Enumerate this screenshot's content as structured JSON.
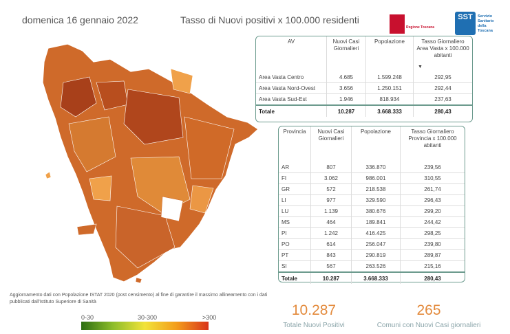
{
  "header": {
    "date": "domenica 16 gennaio 2022",
    "title": "Tasso di Nuovi positivi x 100.000 residenti",
    "logo_regione_text": "Regione Toscana",
    "logo_sst_badge": "SST",
    "logo_sst_text": "Servizio Sanitario della Toscana"
  },
  "av_table": {
    "headers": [
      "AV",
      "Nuovi Casi Giornalieri",
      "Popolazione",
      "Tasso Giornaliero Area Vasta x 100.000 abitanti"
    ],
    "sort_indicator": "▼",
    "rows": [
      [
        "Area Vasta Centro",
        "4.685",
        "1.599.248",
        "292,95"
      ],
      [
        "Area Vasta Nord-Ovest",
        "3.656",
        "1.250.151",
        "292,44"
      ],
      [
        "Area Vasta Sud-Est",
        "1.946",
        "818.934",
        "237,63"
      ]
    ],
    "total": [
      "Totale",
      "10.287",
      "3.668.333",
      "280,43"
    ]
  },
  "prov_table": {
    "headers": [
      "Provincia",
      "Nuovi Casi Giornalieri",
      "Popolazione",
      "Tasso Giornaliero Provincia x 100.000 abitanti"
    ],
    "rows": [
      [
        "AR",
        "807",
        "336.870",
        "239,56"
      ],
      [
        "FI",
        "3.062",
        "986.001",
        "310,55"
      ],
      [
        "GR",
        "572",
        "218.538",
        "261,74"
      ],
      [
        "LI",
        "977",
        "329.590",
        "296,43"
      ],
      [
        "LU",
        "1.139",
        "380.676",
        "299,20"
      ],
      [
        "MS",
        "464",
        "189.841",
        "244,42"
      ],
      [
        "PI",
        "1.242",
        "416.425",
        "298,25"
      ],
      [
        "PO",
        "614",
        "256.047",
        "239,80"
      ],
      [
        "PT",
        "843",
        "290.819",
        "289,87"
      ],
      [
        "SI",
        "567",
        "263.526",
        "215,16"
      ]
    ],
    "total": [
      "Totale",
      "10.287",
      "3.668.333",
      "280,43"
    ]
  },
  "note": "Aggiornamento dati con Popolazione ISTAT 2020 (post censimento) al fine di garantire il massimo allineamento con i dati pubblicati dall'Istituto Superiore di Sanità",
  "legend": {
    "low": "0-30",
    "mid": "30-300",
    "high": ">300"
  },
  "kpis": {
    "total_value": "10.287",
    "total_label": "Totale Nuovi Positivi",
    "comuni_value": "265",
    "comuni_label": "Comuni con Nuovi Casi giornalieri"
  },
  "colors": {
    "accent": "#e38a3c",
    "panel_border": "#6b9a8d",
    "map_dark": "#c0581f",
    "map_light": "#f0a14a"
  }
}
